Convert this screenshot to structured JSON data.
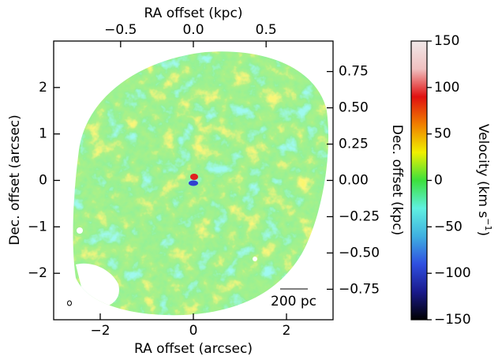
{
  "chart_data": {
    "type": "image",
    "xlabel": "RA offset (arcsec)",
    "ylabel": "Dec. offset (arcsec)",
    "x2label": "RA offset (kpc)",
    "y2label": "Dec. offset (kpc)",
    "xlim": [
      -3.0,
      3.0
    ],
    "ylim": [
      -3.0,
      3.0
    ],
    "xticks": [
      {
        "value": -2,
        "label": "−2"
      },
      0,
      2
    ],
    "yticks": [
      {
        "value": -2,
        "label": "−2"
      },
      {
        "value": -1,
        "label": "−1"
      },
      0,
      1,
      2
    ],
    "x2lim": [
      -0.96,
      0.96
    ],
    "x2ticks": [
      {
        "value": -0.5,
        "label": "−0.5"
      },
      {
        "value": 0,
        "label": "0.0"
      },
      0.5
    ],
    "y2lim": [
      -0.96,
      0.96
    ],
    "y2ticks": [
      {
        "value": -0.75,
        "label": "−0.75"
      },
      {
        "value": -0.5,
        "label": "−0.50"
      },
      {
        "value": -0.25,
        "label": "−0.25"
      },
      {
        "value": 0,
        "label": "0.00"
      },
      0.25,
      {
        "value": 0.5,
        "label": "0.50"
      },
      0.75
    ],
    "scale_bar_label": "200 pc",
    "colorbar_label": {
      "text": "Velocity (km s",
      "sup": "−1",
      "end": ")"
    },
    "clim": [
      -150,
      150
    ],
    "cticks": [
      {
        "value": -150,
        "label": "−150"
      },
      {
        "value": -100,
        "label": "−100"
      },
      {
        "value": -50,
        "label": "−50"
      },
      0,
      50,
      100,
      150
    ],
    "colormap": [
      "#000000",
      "#1a1a8c",
      "#2f4fe0",
      "#3fb0e0",
      "#5ff0e0",
      "#3ce03c",
      "#f0f000",
      "#f08000",
      "#e01010",
      "#f0c0c0",
      "#f0e8e8"
    ]
  }
}
